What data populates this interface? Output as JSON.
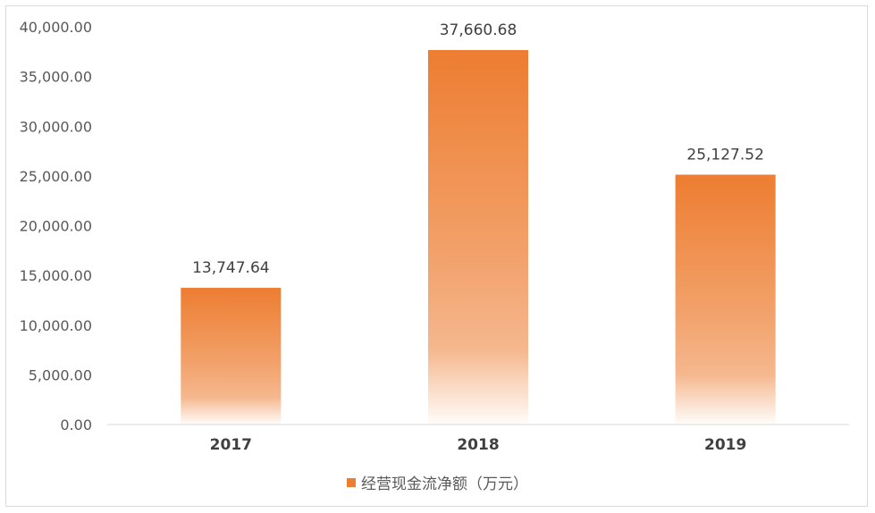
{
  "chart_data": {
    "type": "bar",
    "categories": [
      "2017",
      "2018",
      "2019"
    ],
    "series": [
      {
        "name": "经营现金流净额（万元）",
        "values": [
          13747.64,
          37660.68,
          25127.52
        ],
        "labels": [
          "13,747.64",
          "37,660.68",
          "25,127.52"
        ]
      }
    ],
    "ylim": [
      0,
      40000
    ],
    "yticks": [
      0,
      5000,
      10000,
      15000,
      20000,
      25000,
      30000,
      35000,
      40000
    ],
    "ytick_labels": [
      "0.00",
      "5,000.00",
      "10,000.00",
      "15,000.00",
      "20,000.00",
      "25,000.00",
      "30,000.00",
      "35,000.00",
      "40,000.00"
    ],
    "grid": false,
    "legend": "bottom",
    "bar_color": "#ed7d31"
  }
}
